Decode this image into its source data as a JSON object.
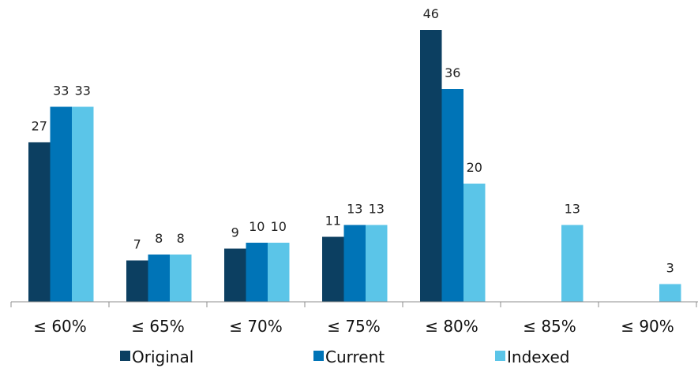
{
  "chart_data": {
    "type": "bar",
    "categories": [
      "≤ 60%",
      "≤ 65%",
      "≤ 70%",
      "≤ 75%",
      "≤ 80%",
      "≤ 85%",
      "≤ 90%"
    ],
    "series": [
      {
        "name": "Original",
        "color": "#0c3f61",
        "values": [
          27,
          7,
          9,
          11,
          46,
          null,
          null
        ]
      },
      {
        "name": "Current",
        "color": "#0074b7",
        "values": [
          33,
          8,
          10,
          13,
          36,
          null,
          null
        ]
      },
      {
        "name": "Indexed",
        "color": "#5bc5e8",
        "values": [
          33,
          8,
          10,
          13,
          20,
          13,
          3
        ]
      }
    ],
    "title": "",
    "xlabel": "",
    "ylabel": "",
    "ylim": [
      0,
      46
    ],
    "grid": false,
    "legend": "bottom"
  }
}
